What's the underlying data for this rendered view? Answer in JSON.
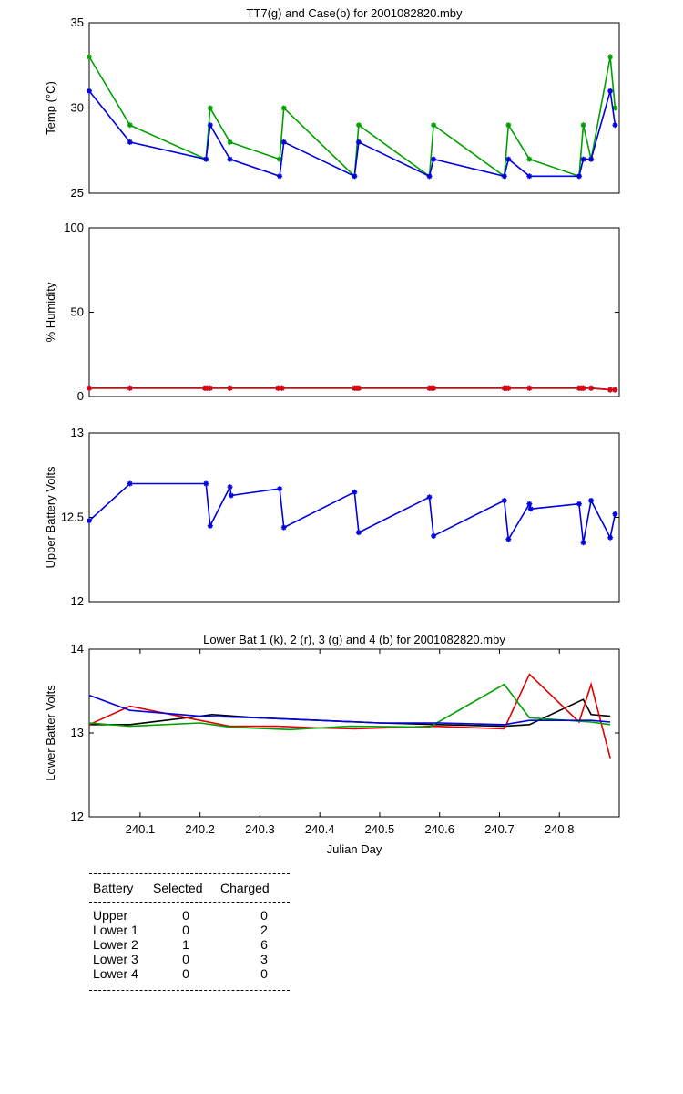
{
  "charts": [
    {
      "id": "temp",
      "type": "line",
      "title": "TT7(g) and Case(b) for 2001082820.mby",
      "ylabel": "Temp (°C)",
      "xlabel": "",
      "xlim": [
        240.015,
        240.9
      ],
      "ylim": [
        25,
        35
      ],
      "yticks": [
        25,
        30,
        35
      ],
      "xticks": [],
      "markers": true,
      "series": [
        {
          "color": "#00a000",
          "x": [
            240.015,
            240.083,
            240.21,
            240.217,
            240.25,
            240.333,
            240.34,
            240.458,
            240.465,
            240.583,
            240.59,
            240.708,
            240.715,
            240.75,
            240.833,
            240.84,
            240.853,
            240.885,
            240.893
          ],
          "y": [
            33,
            29,
            27,
            30,
            28,
            27,
            30,
            26,
            29,
            26,
            29,
            26,
            29,
            27,
            26,
            29,
            27,
            33,
            30
          ]
        },
        {
          "color": "#0000e0",
          "x": [
            240.015,
            240.083,
            240.21,
            240.217,
            240.25,
            240.333,
            240.34,
            240.458,
            240.465,
            240.583,
            240.59,
            240.708,
            240.715,
            240.75,
            240.833,
            240.84,
            240.853,
            240.885,
            240.893
          ],
          "y": [
            31,
            28,
            27,
            29,
            27,
            26,
            28,
            26,
            28,
            26,
            27,
            26,
            27,
            26,
            26,
            27,
            27,
            31,
            29
          ]
        }
      ]
    },
    {
      "id": "humidity",
      "type": "line",
      "title": "",
      "ylabel": "% Humidity",
      "xlabel": "",
      "xlim": [
        240.015,
        240.9
      ],
      "ylim": [
        0,
        100
      ],
      "yticks": [
        0,
        50,
        100
      ],
      "xticks": [],
      "markers": true,
      "series": [
        {
          "color": "#0000e0",
          "x": [
            240.015,
            240.083,
            240.208,
            240.212,
            240.217,
            240.25,
            240.33,
            240.333,
            240.337,
            240.458,
            240.462,
            240.465,
            240.583,
            240.587,
            240.59,
            240.708,
            240.712,
            240.715,
            240.75,
            240.833,
            240.837,
            240.84,
            240.853,
            240.885,
            240.893
          ],
          "y": [
            5,
            5,
            5,
            5,
            5,
            5,
            5,
            5,
            5,
            5,
            5,
            5,
            5,
            5,
            5,
            5,
            5,
            5,
            5,
            5,
            5,
            5,
            5,
            4,
            4
          ]
        },
        {
          "color": "#e00000",
          "x": [
            240.015,
            240.083,
            240.208,
            240.212,
            240.217,
            240.25,
            240.33,
            240.333,
            240.337,
            240.458,
            240.462,
            240.465,
            240.583,
            240.587,
            240.59,
            240.708,
            240.712,
            240.715,
            240.75,
            240.833,
            240.837,
            240.84,
            240.853,
            240.885,
            240.893
          ],
          "y": [
            5,
            5,
            5,
            5,
            5,
            5,
            5,
            5,
            5,
            5,
            5,
            5,
            5,
            5,
            5,
            5,
            5,
            5,
            5,
            5,
            5,
            5,
            5,
            4,
            4
          ]
        }
      ]
    },
    {
      "id": "upper",
      "type": "line",
      "title": "",
      "ylabel": "Upper Battery Volts",
      "xlabel": "",
      "xlim": [
        240.015,
        240.9
      ],
      "ylim": [
        12,
        13
      ],
      "yticks": [
        12,
        12.5,
        13
      ],
      "xticks": [],
      "markers": true,
      "series": [
        {
          "color": "#0000e0",
          "x": [
            240.015,
            240.083,
            240.21,
            240.217,
            240.25,
            240.252,
            240.333,
            240.34,
            240.458,
            240.465,
            240.583,
            240.59,
            240.708,
            240.715,
            240.75,
            240.752,
            240.833,
            240.84,
            240.853,
            240.885,
            240.893
          ],
          "y": [
            12.48,
            12.7,
            12.7,
            12.45,
            12.68,
            12.63,
            12.67,
            12.44,
            12.65,
            12.41,
            12.62,
            12.39,
            12.6,
            12.37,
            12.58,
            12.55,
            12.58,
            12.35,
            12.6,
            12.38,
            12.52
          ]
        }
      ]
    },
    {
      "id": "lower",
      "type": "line",
      "title": "Lower Bat 1 (k), 2 (r), 3 (g) and 4 (b) for 2001082820.mby",
      "ylabel": "Lower Batter Volts",
      "xlabel": "Julian Day",
      "xlim": [
        240.015,
        240.9
      ],
      "ylim": [
        12,
        14
      ],
      "yticks": [
        12,
        13,
        14
      ],
      "xticks": [
        240.1,
        240.2,
        240.3,
        240.4,
        240.5,
        240.6,
        240.7,
        240.8
      ],
      "markers": false,
      "series": [
        {
          "color": "#000000",
          "x": [
            240.015,
            240.083,
            240.2,
            240.22,
            240.3,
            240.4,
            240.5,
            240.6,
            240.708,
            240.75,
            240.84,
            240.853,
            240.885
          ],
          "y": [
            13.1,
            13.1,
            13.2,
            13.22,
            13.18,
            13.15,
            13.12,
            13.1,
            13.08,
            13.1,
            13.4,
            13.22,
            13.2
          ]
        },
        {
          "color": "#e00000",
          "x": [
            240.015,
            240.083,
            240.2,
            240.25,
            240.33,
            240.4,
            240.458,
            240.59,
            240.708,
            240.75,
            240.833,
            240.853,
            240.885
          ],
          "y": [
            13.1,
            13.32,
            13.15,
            13.08,
            13.08,
            13.06,
            13.05,
            13.08,
            13.05,
            13.7,
            13.13,
            13.58,
            12.7
          ]
        },
        {
          "color": "#00a000",
          "x": [
            240.015,
            240.083,
            240.2,
            240.25,
            240.35,
            240.45,
            240.583,
            240.708,
            240.75,
            240.853,
            240.885
          ],
          "y": [
            13.12,
            13.08,
            13.12,
            13.07,
            13.04,
            13.08,
            13.07,
            13.58,
            13.18,
            13.13,
            13.1
          ]
        },
        {
          "color": "#0000e0",
          "x": [
            240.015,
            240.083,
            240.2,
            240.3,
            240.4,
            240.5,
            240.6,
            240.708,
            240.75,
            240.853,
            240.885
          ],
          "y": [
            13.45,
            13.27,
            13.2,
            13.18,
            13.15,
            13.12,
            13.12,
            13.1,
            13.15,
            13.15,
            13.13
          ]
        }
      ]
    }
  ],
  "summary": {
    "headers": [
      "Battery",
      "Selected",
      "Charged"
    ],
    "rows": [
      {
        "battery": "Upper",
        "selected": "0",
        "charged": "0"
      },
      {
        "battery": "Lower 1",
        "selected": "0",
        "charged": "2"
      },
      {
        "battery": "Lower 2",
        "selected": "1",
        "charged": "6"
      },
      {
        "battery": "Lower 3",
        "selected": "0",
        "charged": "3"
      },
      {
        "battery": "Lower 4",
        "selected": "0",
        "charged": "0"
      }
    ]
  }
}
